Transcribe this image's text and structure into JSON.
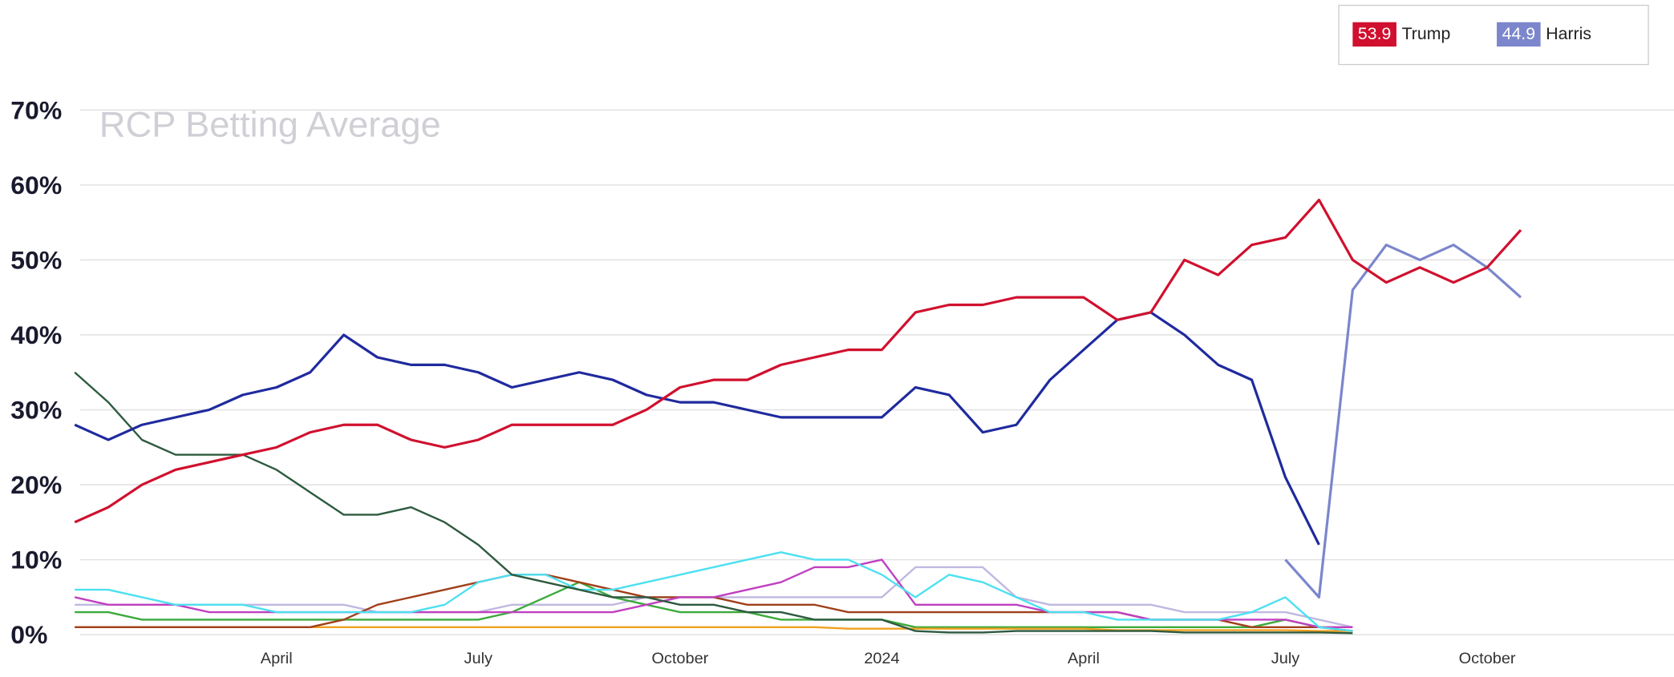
{
  "chart_data": {
    "type": "line",
    "title": "RCP Betting Average",
    "categories": [
      null,
      null,
      null,
      null,
      null,
      null,
      "April",
      null,
      null,
      null,
      null,
      null,
      "July",
      null,
      null,
      null,
      null,
      null,
      "October",
      null,
      null,
      null,
      null,
      null,
      "2024",
      null,
      null,
      null,
      null,
      null,
      "April",
      null,
      null,
      null,
      null,
      null,
      "July",
      null,
      null,
      null,
      null,
      null,
      "October",
      null,
      null,
      null,
      null,
      null
    ],
    "ylim": [
      0,
      70
    ],
    "yticks": [
      {
        "value": 0,
        "label": "0%"
      },
      {
        "value": 10,
        "label": "10%"
      },
      {
        "value": 20,
        "label": "20%"
      },
      {
        "value": 30,
        "label": "30%"
      },
      {
        "value": 40,
        "label": "40%"
      },
      {
        "value": 50,
        "label": "50%"
      },
      {
        "value": 60,
        "label": "60%"
      },
      {
        "value": 70,
        "label": "70%"
      }
    ],
    "grid": true,
    "legend": "top-right",
    "series": [
      {
        "name": "Trump",
        "color": "#d0102e",
        "current": 53.9,
        "values": [
          15,
          17,
          20,
          22,
          23,
          24,
          25,
          27,
          28,
          28,
          26,
          25,
          26,
          28,
          28,
          28,
          28,
          30,
          33,
          34,
          34,
          36,
          37,
          38,
          38,
          43,
          44,
          44,
          45,
          45,
          45,
          42,
          43,
          50,
          48,
          52,
          53,
          58,
          50,
          47,
          49,
          47,
          49,
          54,
          null,
          null,
          null,
          null
        ]
      },
      {
        "name": "Harris",
        "color": "#7b86cc",
        "current": 44.9,
        "values": [
          null,
          null,
          null,
          null,
          null,
          null,
          null,
          null,
          null,
          null,
          null,
          null,
          null,
          null,
          null,
          null,
          null,
          null,
          null,
          null,
          null,
          null,
          null,
          null,
          null,
          null,
          null,
          null,
          null,
          null,
          null,
          null,
          null,
          null,
          null,
          null,
          10,
          5,
          46,
          52,
          50,
          52,
          49,
          45,
          null,
          null,
          null,
          null
        ]
      },
      {
        "color": "#1f2a9e",
        "values": [
          28,
          26,
          28,
          29,
          30,
          32,
          33,
          35,
          40,
          37,
          36,
          36,
          35,
          33,
          34,
          35,
          34,
          32,
          31,
          31,
          30,
          29,
          29,
          29,
          29,
          33,
          32,
          27,
          28,
          34,
          38,
          42,
          43,
          40,
          36,
          34,
          21,
          12,
          null,
          null,
          null,
          null,
          null,
          null,
          null,
          null,
          null,
          null
        ]
      },
      {
        "color": "#2d5a3f",
        "values": [
          35,
          31,
          26,
          24,
          24,
          24,
          22,
          19,
          16,
          16,
          17,
          15,
          12,
          8,
          7,
          6,
          5,
          5,
          4,
          4,
          3,
          3,
          2,
          2,
          2,
          0.5,
          0.3,
          0.3,
          0.5,
          0.5,
          0.5,
          0.5,
          0.5,
          0.3,
          0.3,
          0.3,
          0.3,
          0.3,
          0.2,
          null,
          null,
          null,
          null,
          null,
          null,
          null,
          null,
          null
        ]
      },
      {
        "color": "#4de0f0",
        "values": [
          6,
          6,
          5,
          4,
          4,
          4,
          3,
          3,
          3,
          3,
          3,
          4,
          7,
          8,
          8,
          6,
          6,
          7,
          8,
          9,
          10,
          11,
          10,
          10,
          8,
          5,
          8,
          7,
          5,
          3,
          3,
          2,
          2,
          2,
          2,
          3,
          5,
          1,
          0.5,
          null,
          null,
          null,
          null,
          null,
          null,
          null,
          null,
          null
        ]
      },
      {
        "color": "#c040c0",
        "values": [
          5,
          4,
          4,
          4,
          3,
          3,
          3,
          3,
          3,
          3,
          3,
          3,
          3,
          3,
          3,
          3,
          3,
          4,
          5,
          5,
          6,
          7,
          9,
          9,
          10,
          4,
          4,
          4,
          4,
          3,
          3,
          3,
          2,
          2,
          2,
          2,
          2,
          1,
          1,
          null,
          null,
          null,
          null,
          null,
          null,
          null,
          null,
          null
        ]
      },
      {
        "color": "#a0401a",
        "values": [
          1,
          1,
          1,
          1,
          1,
          1,
          1,
          1,
          2,
          4,
          5,
          6,
          7,
          8,
          8,
          7,
          6,
          5,
          5,
          5,
          4,
          4,
          4,
          3,
          3,
          3,
          3,
          3,
          3,
          3,
          3,
          3,
          2,
          2,
          2,
          1,
          1,
          1,
          0.5,
          null,
          null,
          null,
          null,
          null,
          null,
          null,
          null,
          null
        ]
      },
      {
        "color": "#f0a020",
        "values": [
          1,
          1,
          1,
          1,
          1,
          1,
          1,
          1,
          1,
          1,
          1,
          1,
          1,
          1,
          1,
          1,
          1,
          1,
          1,
          1,
          1,
          1,
          1,
          0.8,
          0.8,
          0.8,
          0.8,
          0.8,
          0.8,
          0.8,
          0.8,
          0.6,
          0.6,
          0.6,
          0.6,
          0.6,
          0.6,
          0.5,
          0.5,
          null,
          null,
          null,
          null,
          null,
          null,
          null,
          null,
          null
        ]
      },
      {
        "color": "#3caa3c",
        "values": [
          3,
          3,
          2,
          2,
          2,
          2,
          2,
          2,
          2,
          2,
          2,
          2,
          2,
          3,
          5,
          7,
          5,
          4,
          3,
          3,
          3,
          2,
          2,
          2,
          2,
          1,
          1,
          1,
          1,
          1,
          1,
          1,
          1,
          1,
          1,
          1,
          2,
          1,
          0.5,
          null,
          null,
          null,
          null,
          null,
          null,
          null,
          null,
          null
        ]
      },
      {
        "color": "#c0b8e0",
        "values": [
          4,
          4,
          4,
          4,
          4,
          4,
          4,
          4,
          4,
          3,
          3,
          3,
          3,
          4,
          4,
          4,
          4,
          5,
          5,
          5,
          5,
          5,
          5,
          5,
          5,
          9,
          9,
          9,
          5,
          4,
          4,
          4,
          4,
          3,
          3,
          3,
          3,
          2,
          1,
          null,
          null,
          null,
          null,
          null,
          null,
          null,
          null,
          null
        ]
      }
    ]
  }
}
